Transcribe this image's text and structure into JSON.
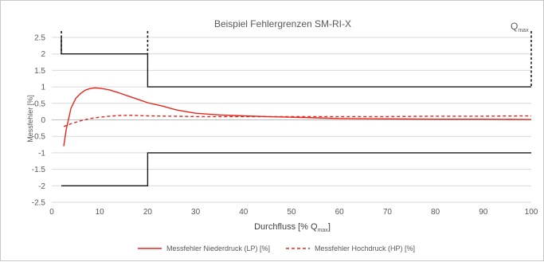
{
  "chart_data": {
    "type": "line",
    "title": "Beispiel Fehlergrenzen SM-RI-X",
    "xlabel": "Durchfluss [% Q",
    "xlabel_sub": "max",
    "xlabel_suffix": "]",
    "ylabel": "Messfehler [%]",
    "xlim": [
      0,
      100
    ],
    "ylim": [
      -2.5,
      2.5
    ],
    "xticks": [
      0,
      10,
      20,
      30,
      40,
      50,
      60,
      70,
      80,
      90,
      100
    ],
    "yticks": [
      2.5,
      2,
      1.5,
      1,
      0.5,
      0,
      -0.5,
      -1,
      -1.5,
      -2,
      -2.5
    ],
    "ytick_labels": [
      "2.5",
      "2",
      "1.5",
      "1",
      "0.5",
      "0",
      "-0.5",
      "-1",
      "-1.5",
      "-2",
      "-2.5"
    ],
    "grid": "horizontal",
    "legend_position": "bottom",
    "annotation": {
      "text": "Q",
      "sub": "max"
    },
    "limits": {
      "upper": [
        [
          2,
          2.5
        ],
        [
          2,
          2
        ],
        [
          20,
          2
        ],
        [
          20,
          1
        ],
        [
          100,
          1
        ]
      ],
      "lower": [
        [
          2,
          -2
        ],
        [
          20,
          -2
        ],
        [
          20,
          -1
        ],
        [
          100,
          -1
        ]
      ],
      "vertical_markers": [
        {
          "x": 2,
          "y_from": 2.5,
          "y_to": 2
        },
        {
          "x": 20,
          "y_from": 2.5,
          "y_to": 2
        },
        {
          "x": 100,
          "y_from": 2.5,
          "y_to": 1
        }
      ]
    },
    "series": [
      {
        "name": "Messfehler Niederdruck (LP) [%]",
        "style": "solid",
        "x": [
          2.5,
          3,
          4,
          5,
          6,
          7,
          8,
          9,
          10,
          12,
          14,
          16,
          18,
          20,
          23,
          26,
          30,
          35,
          40,
          45,
          50,
          55,
          60,
          70,
          80,
          90,
          100
        ],
        "y": [
          -0.8,
          -0.3,
          0.35,
          0.65,
          0.8,
          0.9,
          0.95,
          0.97,
          0.96,
          0.91,
          0.82,
          0.72,
          0.62,
          0.52,
          0.42,
          0.3,
          0.2,
          0.15,
          0.12,
          0.1,
          0.08,
          0.06,
          0.04,
          0.03,
          0.02,
          0.02,
          0.01
        ]
      },
      {
        "name": "Messfehler Hochdruck (HP) [%]",
        "style": "dashed",
        "x": [
          2.5,
          4,
          6,
          8,
          10,
          12,
          14,
          16,
          18,
          20,
          25,
          30,
          40,
          50,
          60,
          70,
          80,
          90,
          100
        ],
        "y": [
          -0.2,
          -0.12,
          -0.03,
          0.04,
          0.08,
          0.11,
          0.13,
          0.14,
          0.13,
          0.12,
          0.11,
          0.1,
          0.1,
          0.1,
          0.1,
          0.1,
          0.11,
          0.11,
          0.12
        ]
      }
    ],
    "colors": {
      "series": [
        "#e8261c",
        "#e8261c"
      ],
      "limits": "#1a1a1a",
      "grid": "#d9d9d9",
      "axis": "#bfbfbf"
    }
  }
}
